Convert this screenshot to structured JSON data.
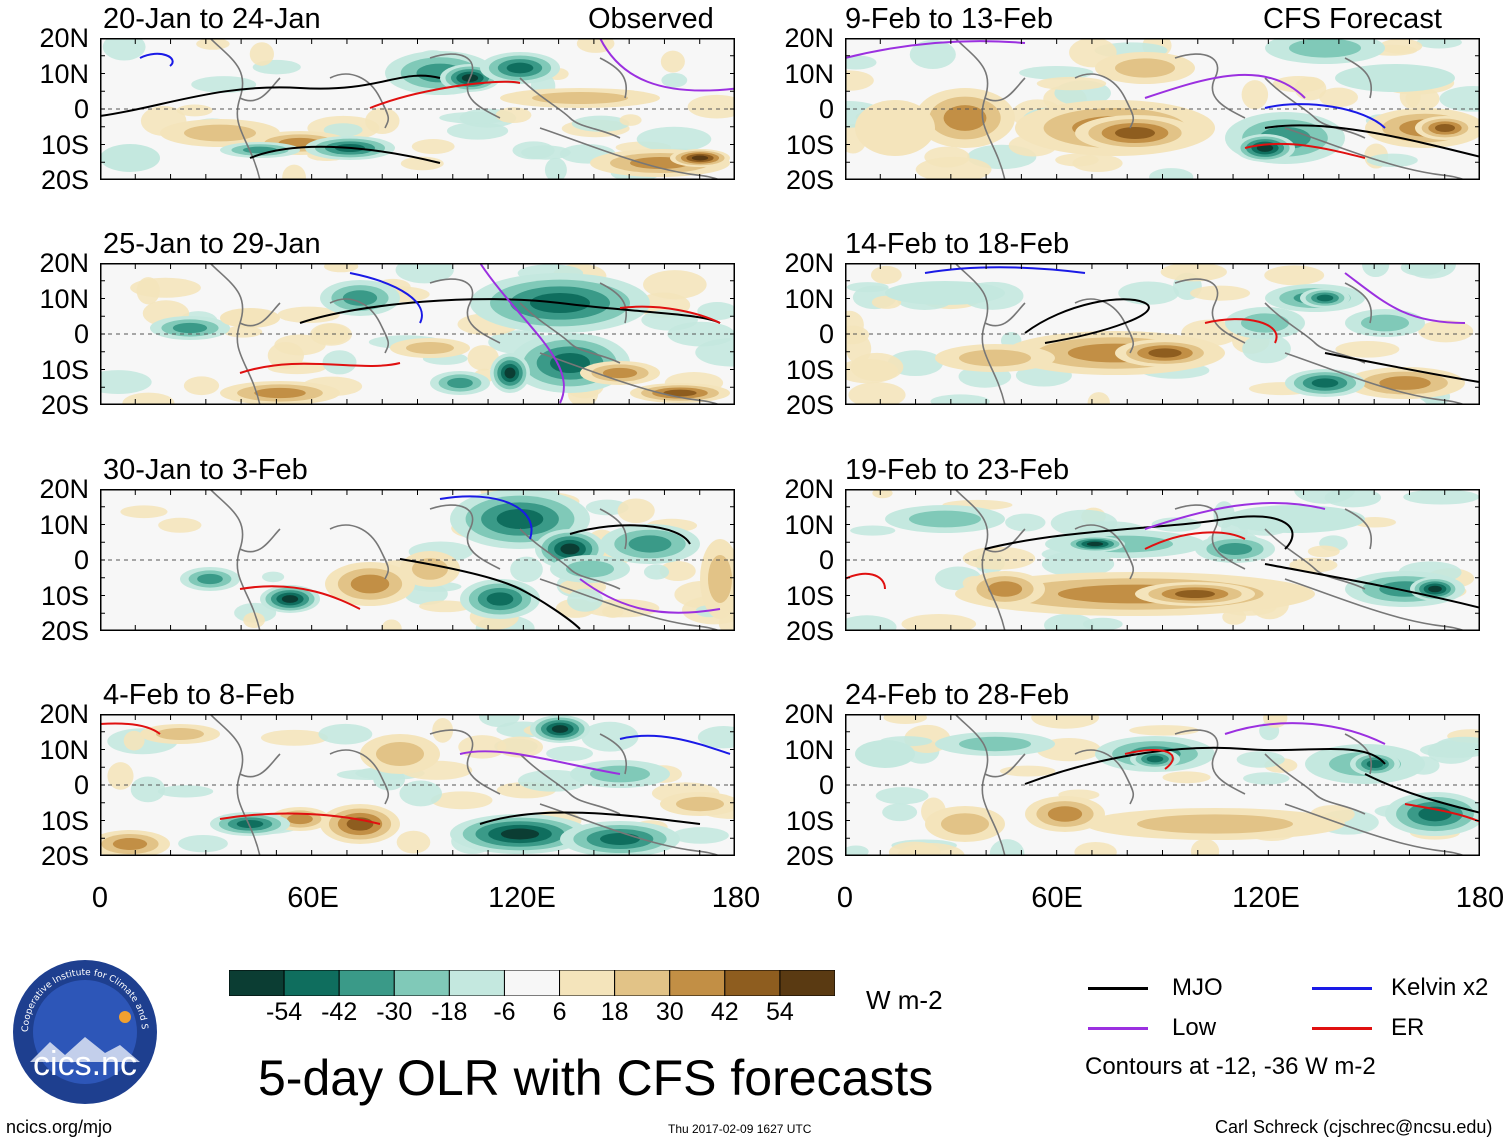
{
  "figure_title": "5-day OLR with CFS forecasts",
  "observed_label": "Observed",
  "forecast_label": "CFS Forecast",
  "lat_labels": [
    "20N",
    "10N",
    "0",
    "10S",
    "20S"
  ],
  "lon_labels": [
    "0",
    "60E",
    "120E",
    "180"
  ],
  "panels": {
    "observed": [
      "20-Jan to 24-Jan",
      "25-Jan to 29-Jan",
      "30-Jan to 3-Feb",
      "4-Feb to 8-Feb"
    ],
    "forecast": [
      "9-Feb to 13-Feb",
      "14-Feb to 18-Feb",
      "19-Feb to 23-Feb",
      "24-Feb to 28-Feb"
    ]
  },
  "colorbar": {
    "unit": "W m-2",
    "labels": [
      "-54",
      "-42",
      "-30",
      "-18",
      "-6",
      "6",
      "18",
      "30",
      "42",
      "54"
    ],
    "colors": [
      "#0b3d33",
      "#0f6e5e",
      "#3a9a88",
      "#80c9b8",
      "#c4e8df",
      "#f7f7f7",
      "#f4e4bb",
      "#e2c387",
      "#c28f45",
      "#8e5d1f",
      "#5a3a12"
    ]
  },
  "legend": {
    "items": [
      {
        "label": "MJO",
        "color": "#000000"
      },
      {
        "label": "Kelvin x2",
        "color": "#1a1ae6"
      },
      {
        "label": "Low",
        "color": "#9b30e0"
      },
      {
        "label": "ER",
        "color": "#e01010"
      }
    ],
    "note": "Contours at -12, -36 W m-2"
  },
  "logo_text": "cics.nc",
  "logo_ring_text": "Cooperative Institute for Climate and Satellites",
  "footer": {
    "left": "ncics.org/mjo",
    "middle": "Thu 2017-02-09 1627 UTC",
    "right": "Carl Schreck (cjschrec@ncsu.edu)"
  }
}
